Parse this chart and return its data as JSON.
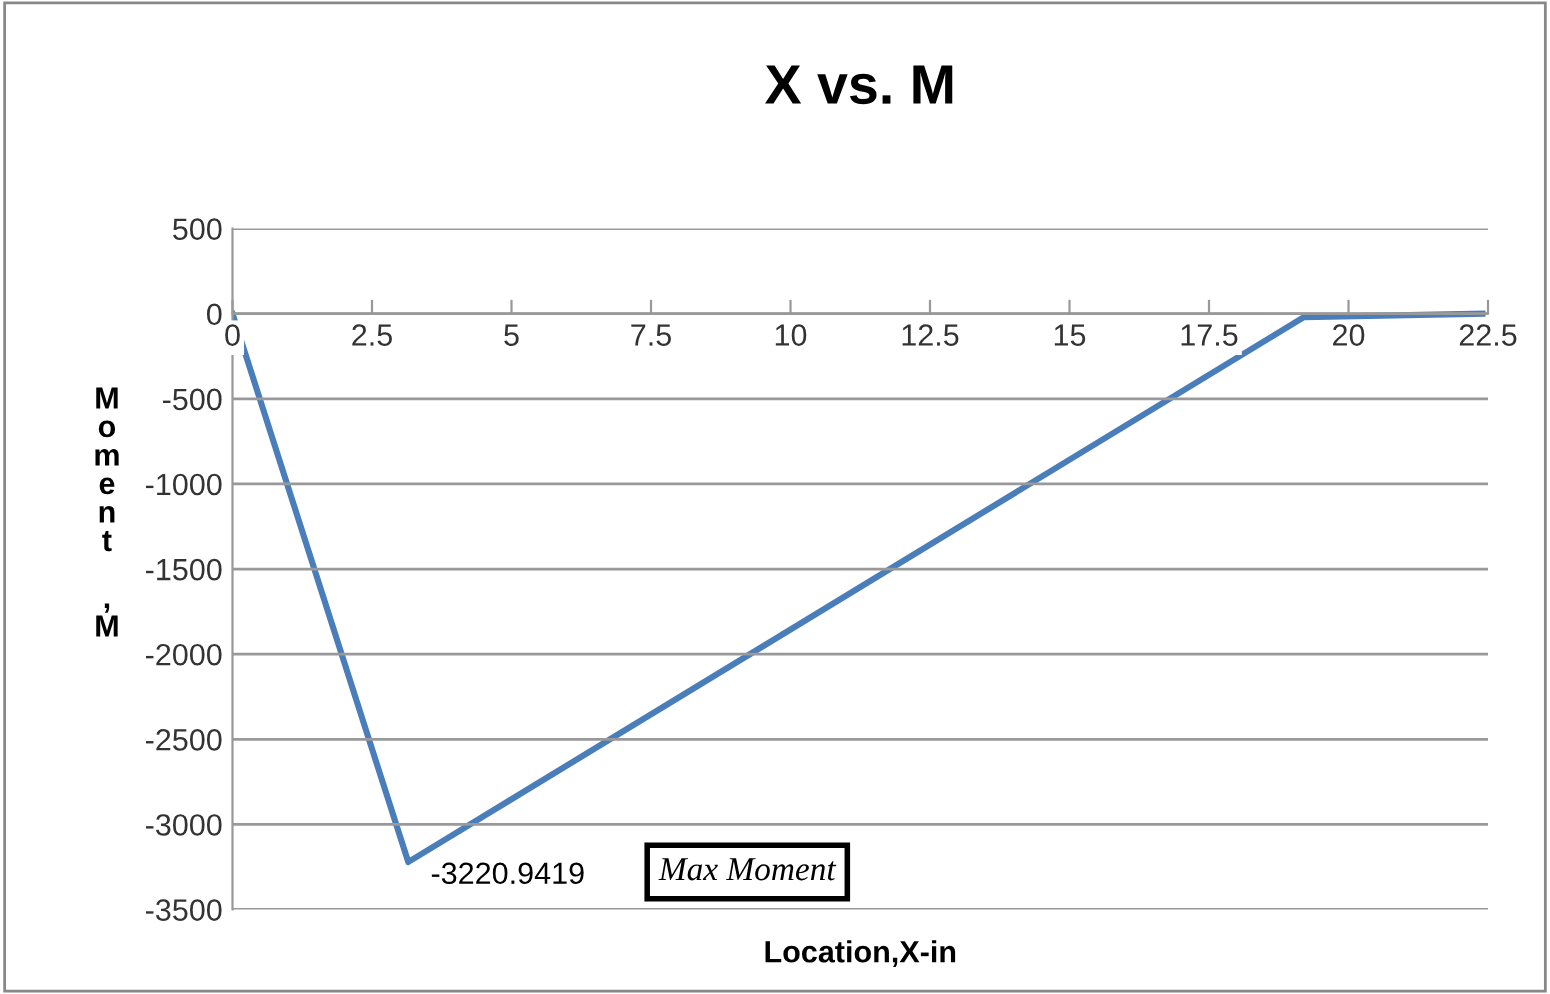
{
  "chart_data": {
    "type": "line",
    "title": "X vs. M",
    "xlabel": "Location,X-in",
    "ylabel": "Moment ,M",
    "x": [
      0,
      3.15,
      19.2,
      22.4
    ],
    "series": [
      {
        "color": "#4a7ebb",
        "values": [
          0,
          -3220.9419,
          -20,
          0
        ]
      }
    ],
    "xlim": [
      0,
      22.5
    ],
    "xticks": [
      0,
      2.5,
      5,
      7.5,
      10,
      12.5,
      15,
      17.5,
      20,
      22.5
    ],
    "ylim": [
      -3500,
      500
    ],
    "yticks": [
      -3500,
      -3000,
      -2500,
      -2000,
      -1500,
      -1000,
      -500,
      0,
      500
    ],
    "grid": "y",
    "legend": false,
    "marker": "none",
    "line_style": "solid",
    "annotations": [
      {
        "text": "-3220.9419",
        "x": 3.15,
        "y": -3220.9419
      },
      "Max Moment"
    ]
  }
}
